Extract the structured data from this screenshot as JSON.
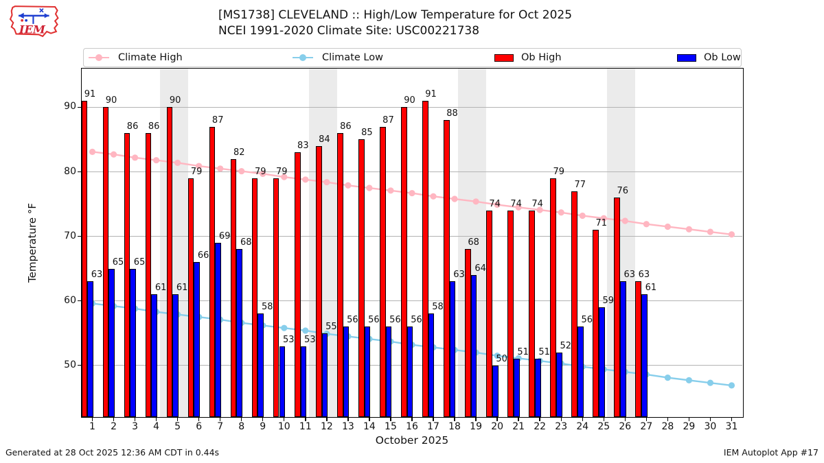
{
  "header": {
    "logo_text": "IEM",
    "title_line1": "[MS1738] CLEVELAND :: High/Low Temperature for Oct 2025",
    "title_line2": "NCEI 1991-2020 Climate Site: USC00221738"
  },
  "legend": {
    "items": [
      {
        "label": "Climate High",
        "kind": "line",
        "color": "#ffb6c1"
      },
      {
        "label": "Climate Low",
        "kind": "line",
        "color": "#87ceeb"
      },
      {
        "label": "Ob High",
        "kind": "patch",
        "color": "#ff0000"
      },
      {
        "label": "Ob Low",
        "kind": "patch",
        "color": "#0000ff"
      }
    ]
  },
  "chart_data": {
    "type": "bar",
    "title": "[MS1738] CLEVELAND :: High/Low Temperature for Oct 2025",
    "subtitle": "NCEI 1991-2020 Climate Site: USC00221738",
    "xlabel": "October 2025",
    "ylabel": "Temperature °F",
    "ylim": [
      42,
      96
    ],
    "yticks": [
      50,
      60,
      70,
      80,
      90
    ],
    "grid": "horizontal",
    "legend_position": "top",
    "x": [
      1,
      2,
      3,
      4,
      5,
      6,
      7,
      8,
      9,
      10,
      11,
      12,
      13,
      14,
      15,
      16,
      17,
      18,
      19,
      20,
      21,
      22,
      23,
      24,
      25,
      26,
      27,
      28,
      29,
      30,
      31
    ],
    "weekend_shading_days": [
      [
        4,
        5
      ],
      [
        11,
        12
      ],
      [
        18,
        19
      ],
      [
        25,
        26
      ]
    ],
    "series": [
      {
        "name": "Ob High",
        "type": "bar",
        "color": "#ff0000",
        "values": [
          91,
          90,
          86,
          86,
          90,
          79,
          87,
          82,
          79,
          79,
          83,
          84,
          86,
          85,
          87,
          90,
          91,
          88,
          68,
          74,
          74,
          74,
          79,
          77,
          71,
          76,
          63,
          null,
          null,
          null,
          null
        ]
      },
      {
        "name": "Ob Low",
        "type": "bar",
        "color": "#0000ff",
        "values": [
          63,
          65,
          65,
          61,
          61,
          66,
          69,
          68,
          58,
          53,
          53,
          55,
          56,
          56,
          56,
          56,
          58,
          63,
          64,
          50,
          51,
          51,
          52,
          56,
          59,
          63,
          61,
          null,
          null,
          null,
          null
        ]
      },
      {
        "name": "Climate High",
        "type": "line",
        "color": "#ffb6c1",
        "values": [
          83.1,
          82.7,
          82.2,
          81.8,
          81.4,
          80.9,
          80.5,
          80.1,
          79.7,
          79.2,
          78.8,
          78.4,
          77.9,
          77.5,
          77.1,
          76.7,
          76.2,
          75.8,
          75.4,
          74.9,
          74.5,
          74.1,
          73.7,
          73.2,
          72.8,
          72.4,
          71.9,
          71.5,
          71.1,
          70.7,
          70.3
        ]
      },
      {
        "name": "Climate Low",
        "type": "line",
        "color": "#87ceeb",
        "values": [
          59.6,
          59.2,
          58.8,
          58.3,
          57.9,
          57.5,
          57.1,
          56.6,
          56.2,
          55.8,
          55.4,
          54.9,
          54.5,
          54.1,
          53.7,
          53.2,
          52.8,
          52.4,
          52.0,
          51.5,
          51.1,
          50.7,
          50.3,
          49.8,
          49.4,
          49.0,
          48.6,
          48.1,
          47.7,
          47.3,
          46.9
        ]
      }
    ]
  },
  "footer": {
    "left": "Generated at 28 Oct 2025 12:36 AM CDT in 0.44s",
    "right": "IEM Autoplot App #17"
  }
}
